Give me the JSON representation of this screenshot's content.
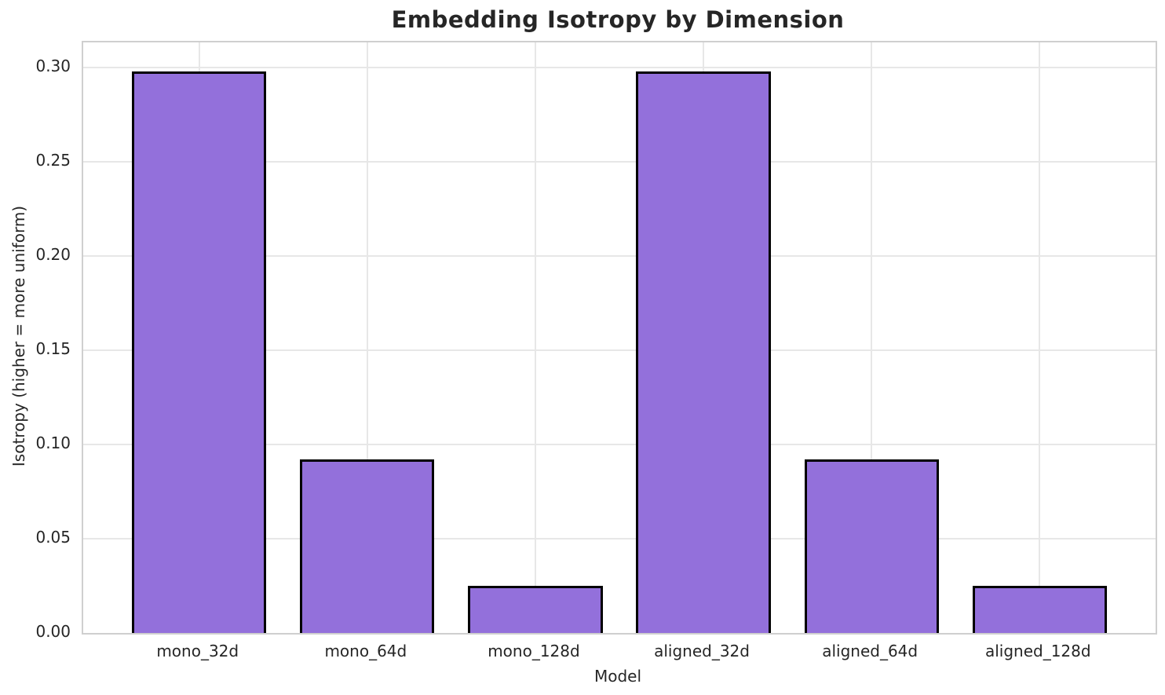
{
  "chart_data": {
    "type": "bar",
    "title": "Embedding Isotropy by Dimension",
    "xlabel": "Model",
    "ylabel": "Isotropy (higher = more uniform)",
    "categories": [
      "mono_32d",
      "mono_64d",
      "mono_128d",
      "aligned_32d",
      "aligned_64d",
      "aligned_128d"
    ],
    "values": [
      0.298,
      0.092,
      0.025,
      0.298,
      0.092,
      0.025
    ],
    "yticks": [
      0.0,
      0.05,
      0.1,
      0.15,
      0.2,
      0.25,
      0.3
    ],
    "ytick_labels": [
      "0.00",
      "0.05",
      "0.10",
      "0.15",
      "0.20",
      "0.25",
      "0.30"
    ],
    "ylim": [
      0,
      0.31333
    ],
    "grid": true,
    "legend": "none",
    "colors": {
      "bar_fill": "#9370db",
      "bar_edge": "#000000",
      "grid_color": "#e7e7e7",
      "spine_color": "#cfcfcf",
      "text_color": "#262626",
      "background": "#ffffff"
    }
  }
}
